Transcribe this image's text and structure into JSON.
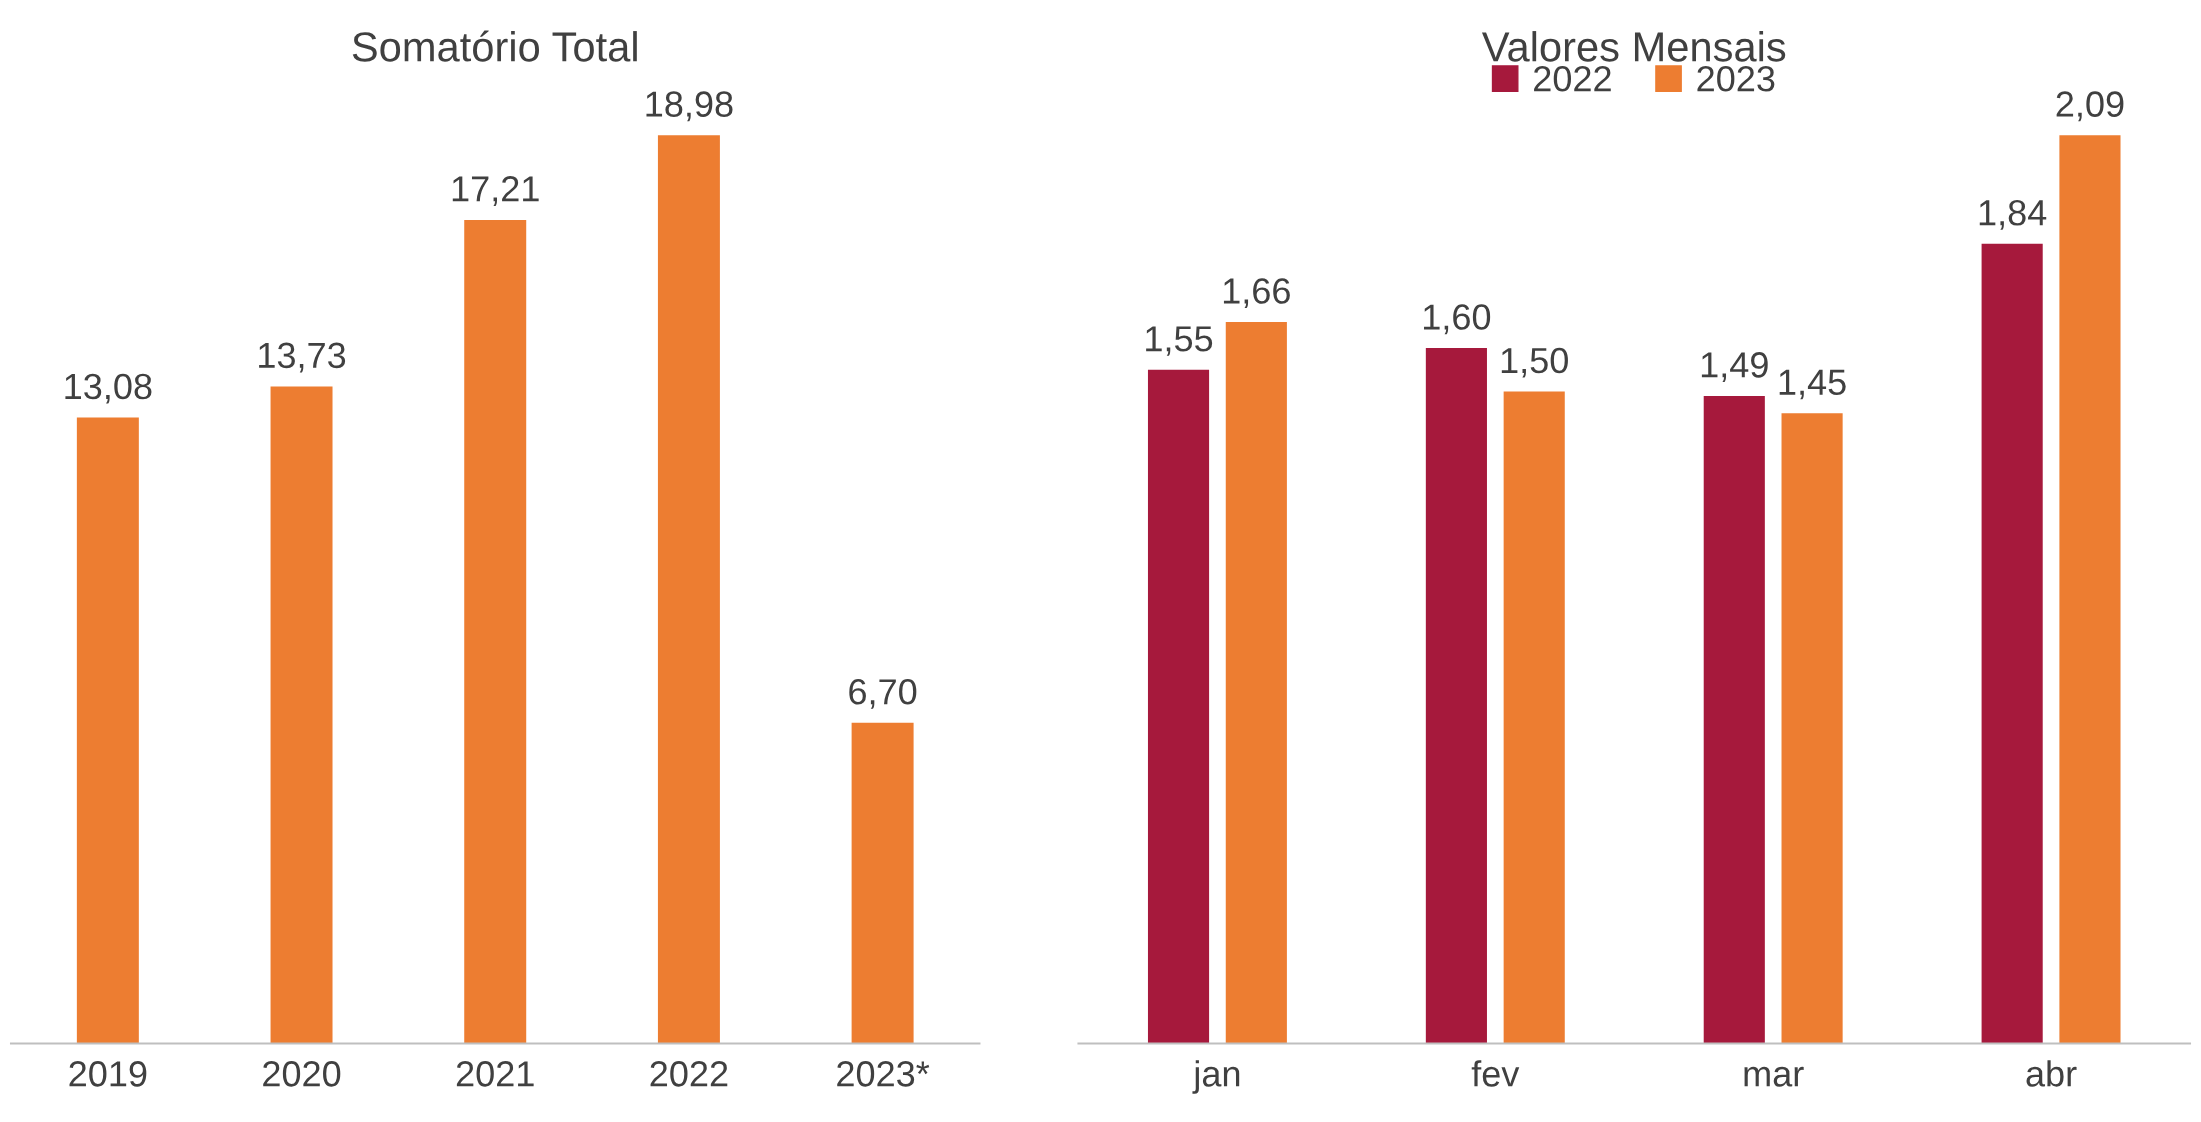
{
  "chart_data": [
    {
      "type": "bar",
      "title": "Somatório Total",
      "categories": [
        "2019",
        "2020",
        "2021",
        "2022",
        "2023*"
      ],
      "series": [
        {
          "color": "#ed7d31",
          "values": [
            13.08,
            13.73,
            17.21,
            18.98,
            6.7
          ],
          "value_labels": [
            "13,08",
            "13,73",
            "17,21",
            "18,98",
            "6,70"
          ]
        }
      ]
    },
    {
      "type": "bar",
      "title": "Valores Mensais",
      "categories": [
        "jan",
        "fev",
        "mar",
        "abr"
      ],
      "legend": "top",
      "series": [
        {
          "name": "2022",
          "color": "#a6193c",
          "values": [
            1.55,
            1.6,
            1.49,
            1.84
          ],
          "value_labels": [
            "1,55",
            "1,60",
            "1,49",
            "1,84"
          ]
        },
        {
          "name": "2023",
          "color": "#ed7d31",
          "values": [
            1.66,
            1.5,
            1.45,
            2.09
          ],
          "value_labels": [
            "1,66",
            "1,50",
            "1,45",
            "2,09"
          ]
        }
      ]
    }
  ]
}
